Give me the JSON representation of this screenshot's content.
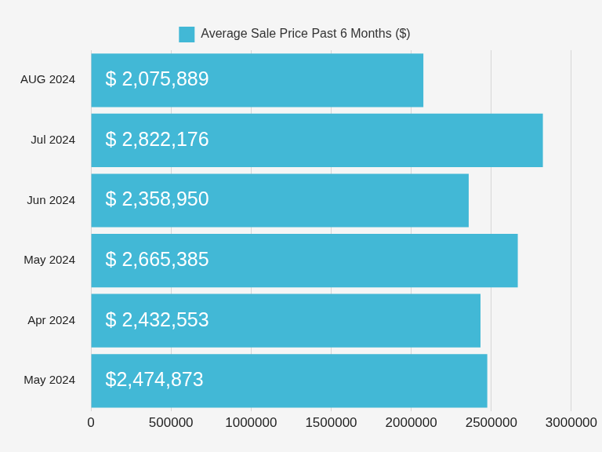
{
  "chart_data": {
    "type": "bar",
    "orientation": "horizontal",
    "categories": [
      "AUG 2024",
      "Jul 2024",
      "Jun 2024",
      "May 2024",
      "Apr 2024",
      "May 2024"
    ],
    "series": [
      {
        "name": "Average Sale Price Past 6 Months ($)",
        "color": "#42b8d6",
        "values": [
          2075889,
          2822176,
          2358950,
          2665385,
          2432553,
          2474873
        ],
        "value_labels": [
          "$ 2,075,889",
          "$ 2,822,176",
          "$ 2,358,950",
          "$ 2,665,385",
          "$ 2,432,553",
          "$2,474,873"
        ]
      }
    ],
    "xlim": [
      0,
      3000000
    ],
    "xticks": [
      0,
      500000,
      1000000,
      1500000,
      2000000,
      2500000,
      3000000
    ],
    "grid": true,
    "legend": "top",
    "data_labels": true
  }
}
